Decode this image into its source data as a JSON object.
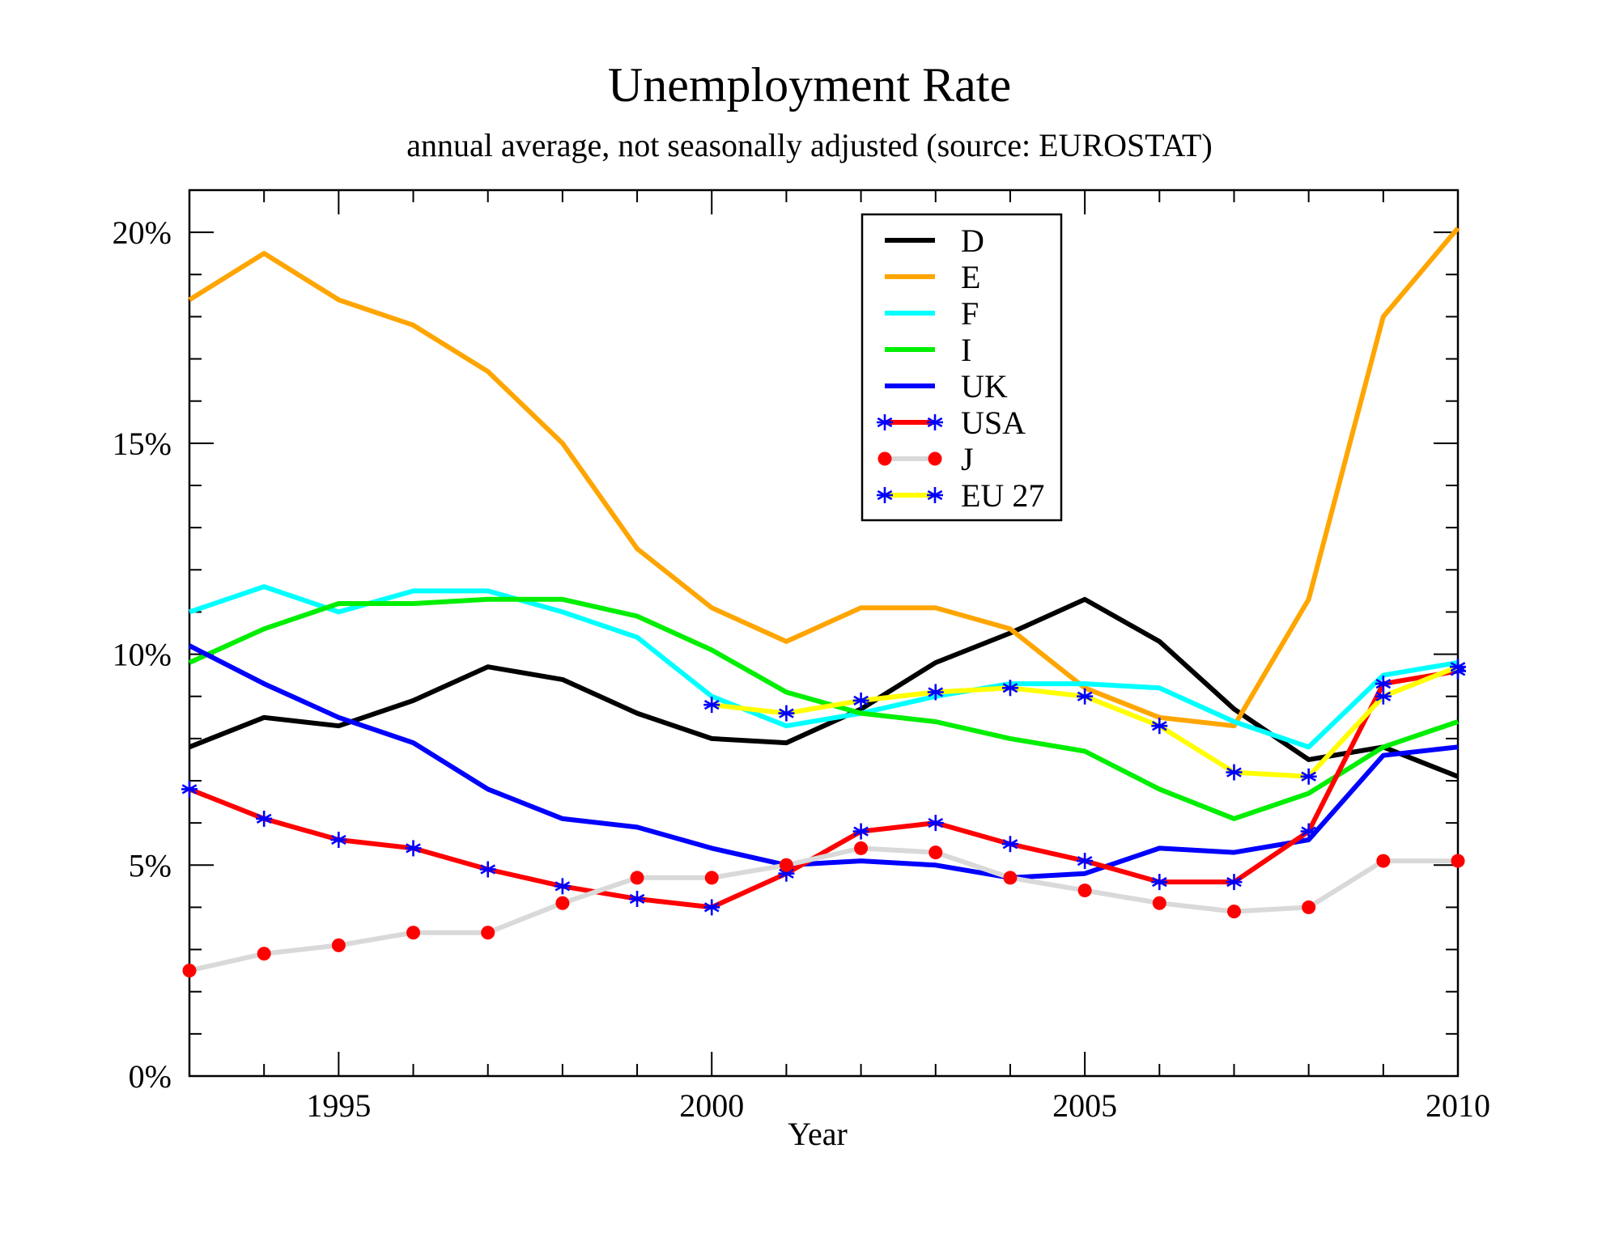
{
  "chart_data": {
    "type": "line",
    "title": "Unemployment Rate",
    "subtitle": "annual average, not seasonally adjusted (source: EUROSTAT)",
    "xlabel": "Year",
    "ylabel": "",
    "xlim": [
      1993,
      2010
    ],
    "ylim": [
      0,
      21
    ],
    "xticks": [
      1995,
      2000,
      2005,
      2010
    ],
    "xtick_labels": [
      "1995",
      "2000",
      "2005",
      "2010"
    ],
    "yticks": [
      0,
      5,
      10,
      15,
      20
    ],
    "ytick_labels": [
      "0%",
      "5%",
      "10%",
      "15%",
      "20%"
    ],
    "grid": false,
    "legend_position": "top-center",
    "series": [
      {
        "name": "D",
        "color": "#000000",
        "marker": "none",
        "x": [
          1993,
          1994,
          1995,
          1996,
          1997,
          1998,
          1999,
          2000,
          2001,
          2002,
          2003,
          2004,
          2005,
          2006,
          2007,
          2008,
          2009,
          2010
        ],
        "values": [
          7.8,
          8.5,
          8.3,
          8.9,
          9.7,
          9.4,
          8.6,
          8.0,
          7.9,
          8.7,
          9.8,
          10.5,
          11.3,
          10.3,
          8.7,
          7.5,
          7.8,
          7.1
        ]
      },
      {
        "name": "E",
        "color": "#ffa500",
        "marker": "none",
        "x": [
          1993,
          1994,
          1995,
          1996,
          1997,
          1998,
          1999,
          2000,
          2001,
          2002,
          2003,
          2004,
          2005,
          2006,
          2007,
          2008,
          2009,
          2010
        ],
        "values": [
          18.4,
          19.5,
          18.4,
          17.8,
          16.7,
          15.0,
          12.5,
          11.1,
          10.3,
          11.1,
          11.1,
          10.6,
          9.2,
          8.5,
          8.3,
          11.3,
          18.0,
          20.1
        ]
      },
      {
        "name": "F",
        "color": "#00ffff",
        "marker": "none",
        "x": [
          1993,
          1994,
          1995,
          1996,
          1997,
          1998,
          1999,
          2000,
          2001,
          2002,
          2003,
          2004,
          2005,
          2006,
          2007,
          2008,
          2009,
          2010
        ],
        "values": [
          11.0,
          11.6,
          11.0,
          11.5,
          11.5,
          11.0,
          10.4,
          9.0,
          8.3,
          8.6,
          9.0,
          9.3,
          9.3,
          9.2,
          8.4,
          7.8,
          9.5,
          9.8
        ]
      },
      {
        "name": "I",
        "color": "#00ee00",
        "marker": "none",
        "x": [
          1993,
          1994,
          1995,
          1996,
          1997,
          1998,
          1999,
          2000,
          2001,
          2002,
          2003,
          2004,
          2005,
          2006,
          2007,
          2008,
          2009,
          2010
        ],
        "values": [
          9.8,
          10.6,
          11.2,
          11.2,
          11.3,
          11.3,
          10.9,
          10.1,
          9.1,
          8.6,
          8.4,
          8.0,
          7.7,
          6.8,
          6.1,
          6.7,
          7.8,
          8.4
        ]
      },
      {
        "name": "UK",
        "color": "#0000ff",
        "marker": "none",
        "x": [
          1993,
          1994,
          1995,
          1996,
          1997,
          1998,
          1999,
          2000,
          2001,
          2002,
          2003,
          2004,
          2005,
          2006,
          2007,
          2008,
          2009,
          2010
        ],
        "values": [
          10.2,
          9.3,
          8.5,
          7.9,
          6.8,
          6.1,
          5.9,
          5.4,
          5.0,
          5.1,
          5.0,
          4.7,
          4.8,
          5.4,
          5.3,
          5.6,
          7.6,
          7.8
        ]
      },
      {
        "name": "USA",
        "color": "#ff0000",
        "marker": "star",
        "marker_color": "#0000ff",
        "x": [
          1993,
          1994,
          1995,
          1996,
          1997,
          1998,
          1999,
          2000,
          2001,
          2002,
          2003,
          2004,
          2005,
          2006,
          2007,
          2008,
          2009,
          2010
        ],
        "values": [
          6.8,
          6.1,
          5.6,
          5.4,
          4.9,
          4.5,
          4.2,
          4.0,
          4.8,
          5.8,
          6.0,
          5.5,
          5.1,
          4.6,
          4.6,
          5.8,
          9.3,
          9.6
        ]
      },
      {
        "name": "J",
        "color": "#d9d9d9",
        "marker": "dot",
        "marker_color": "#ff0000",
        "x": [
          1993,
          1994,
          1995,
          1996,
          1997,
          1998,
          1999,
          2000,
          2001,
          2002,
          2003,
          2004,
          2005,
          2006,
          2007,
          2008,
          2009,
          2010
        ],
        "values": [
          2.5,
          2.9,
          3.1,
          3.4,
          3.4,
          4.1,
          4.7,
          4.7,
          5.0,
          5.4,
          5.3,
          4.7,
          4.4,
          4.1,
          3.9,
          4.0,
          5.1,
          5.1
        ]
      },
      {
        "name": "EU 27",
        "color": "#ffff00",
        "marker": "star",
        "marker_color": "#0000ff",
        "x": [
          2000,
          2001,
          2002,
          2003,
          2004,
          2005,
          2006,
          2007,
          2008,
          2009,
          2010
        ],
        "values": [
          8.8,
          8.6,
          8.9,
          9.1,
          9.2,
          9.0,
          8.3,
          7.2,
          7.1,
          9.0,
          9.7
        ]
      }
    ]
  }
}
